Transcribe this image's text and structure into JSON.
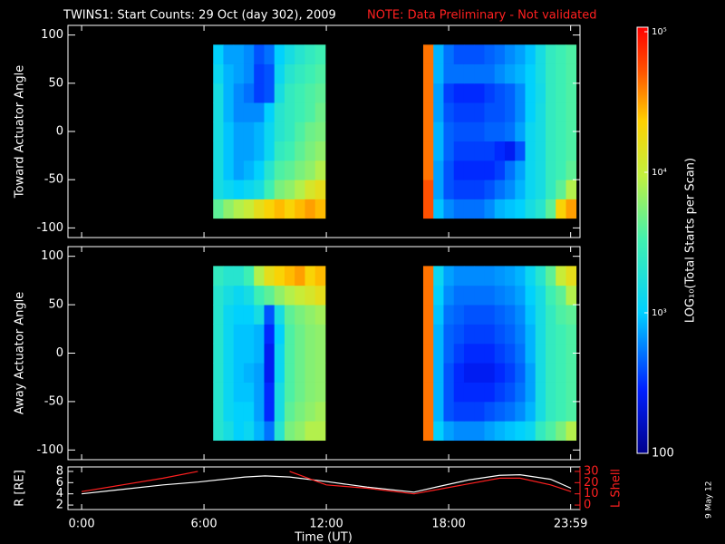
{
  "title": "TWINS1: Start Counts: 29 Oct (day 302), 2009",
  "note": "NOTE: Data Preliminary - Not validated",
  "stamp": "9 May 12",
  "time_axis": {
    "label": "Time (UT)",
    "xlim": [
      -0.67,
      24.44
    ],
    "xticks": [
      {
        "value": 0,
        "label": "0:00"
      },
      {
        "value": 6,
        "label": "6:00"
      },
      {
        "value": 12,
        "label": "12:00"
      },
      {
        "value": 18,
        "label": "18:00"
      },
      {
        "value": 23.98,
        "label": "23:59"
      }
    ]
  },
  "colorbar": {
    "label": "LOG₁₀(Total Starts per Scan)",
    "log": true,
    "lim": [
      100,
      100000
    ],
    "ticks": [
      {
        "value": 100000,
        "label": "10⁵"
      },
      {
        "value": 10000,
        "label": "10⁴"
      },
      {
        "value": 1000,
        "label": "10³"
      },
      100
    ]
  },
  "chart_data": [
    {
      "type": "heatmap",
      "ylabel": "Toward Actuator Angle",
      "ylim": [
        -110,
        110
      ],
      "yticks": [
        -100,
        -50,
        0,
        50,
        100
      ],
      "x": [
        6.7,
        7.2,
        7.7,
        8.2,
        8.7,
        9.2,
        9.7,
        10.2,
        10.7,
        11.2,
        11.7,
        17.0,
        17.5,
        18.0,
        18.5,
        19.0,
        19.5,
        20.0,
        20.5,
        21.0,
        21.5,
        22.0,
        22.5,
        23.0,
        23.5,
        24.0
      ],
      "y": [
        -80,
        -60,
        -40,
        -20,
        0,
        20,
        40,
        60,
        80
      ],
      "values": [
        [
          4000,
          6000,
          8000,
          10000,
          15000,
          20000,
          25000,
          20000,
          25000,
          30000,
          25000,
          50000,
          900,
          600,
          500,
          500,
          500,
          600,
          800,
          900,
          1000,
          1500,
          2000,
          4000,
          20000,
          30000
        ],
        [
          1500,
          1200,
          1000,
          1200,
          1500,
          3000,
          5000,
          6000,
          8000,
          12000,
          15000,
          50000,
          700,
          400,
          350,
          350,
          350,
          400,
          500,
          600,
          800,
          1200,
          1500,
          2500,
          4000,
          8000
        ],
        [
          1500,
          900,
          700,
          800,
          1000,
          2000,
          3500,
          4000,
          5000,
          6000,
          8000,
          40000,
          700,
          400,
          300,
          300,
          300,
          300,
          350,
          500,
          700,
          1200,
          1500,
          2500,
          3000,
          4000
        ],
        [
          1500,
          900,
          700,
          700,
          800,
          1200,
          2500,
          3000,
          4000,
          5000,
          6000,
          40000,
          800,
          450,
          350,
          350,
          350,
          350,
          300,
          250,
          400,
          1200,
          1500,
          2500,
          3000,
          3500
        ],
        [
          1500,
          900,
          700,
          700,
          800,
          1200,
          2000,
          2500,
          3500,
          4500,
          5000,
          40000,
          800,
          450,
          400,
          400,
          400,
          450,
          450,
          500,
          700,
          1200,
          1500,
          2500,
          3000,
          3500
        ],
        [
          1500,
          800,
          600,
          600,
          600,
          1000,
          2000,
          2500,
          3000,
          3500,
          4500,
          40000,
          700,
          400,
          350,
          350,
          350,
          400,
          400,
          450,
          600,
          1000,
          1500,
          2500,
          3000,
          3500
        ],
        [
          1500,
          800,
          600,
          500,
          350,
          400,
          1500,
          2500,
          3000,
          3500,
          4000,
          40000,
          700,
          350,
          300,
          300,
          300,
          350,
          400,
          450,
          600,
          1000,
          1400,
          2500,
          3000,
          3500
        ],
        [
          1200,
          800,
          700,
          600,
          350,
          400,
          1200,
          2000,
          2500,
          3000,
          3500,
          40000,
          800,
          500,
          500,
          500,
          500,
          500,
          600,
          700,
          800,
          1000,
          1500,
          2500,
          3000,
          3500
        ],
        [
          1000,
          700,
          700,
          600,
          400,
          500,
          1000,
          1500,
          2000,
          2500,
          3000,
          40000,
          800,
          500,
          400,
          400,
          400,
          450,
          500,
          600,
          700,
          900,
          1500,
          2500,
          3000,
          3500
        ]
      ]
    },
    {
      "type": "heatmap",
      "ylabel": "Away Actuator Angle",
      "ylim": [
        -110,
        110
      ],
      "yticks": [
        -100,
        -50,
        0,
        50,
        100
      ],
      "x": [
        6.7,
        7.2,
        7.7,
        8.2,
        8.7,
        9.2,
        9.7,
        10.2,
        10.7,
        11.2,
        11.7,
        17.0,
        17.5,
        18.0,
        18.5,
        19.0,
        19.5,
        20.0,
        20.5,
        21.0,
        21.5,
        22.0,
        22.5,
        23.0,
        23.5,
        24.0
      ],
      "y": [
        -80,
        -60,
        -40,
        -20,
        0,
        20,
        40,
        60,
        80
      ],
      "values": [
        [
          2000,
          1500,
          1000,
          1200,
          800,
          500,
          2000,
          5000,
          6000,
          8000,
          8000,
          40000,
          1000,
          700,
          600,
          600,
          600,
          700,
          800,
          900,
          1000,
          1200,
          2500,
          3500,
          5000,
          8000
        ],
        [
          2000,
          1200,
          1000,
          1000,
          700,
          300,
          1500,
          4000,
          5000,
          6000,
          7000,
          40000,
          800,
          400,
          350,
          350,
          350,
          400,
          450,
          500,
          600,
          800,
          1500,
          2500,
          3000,
          3500
        ],
        [
          2000,
          1200,
          900,
          900,
          700,
          300,
          1500,
          3500,
          4500,
          5500,
          6000,
          40000,
          800,
          400,
          300,
          300,
          300,
          300,
          350,
          400,
          500,
          700,
          1500,
          2500,
          3000,
          3500
        ],
        [
          2000,
          1200,
          900,
          800,
          700,
          250,
          1200,
          3500,
          4500,
          5500,
          6000,
          40000,
          800,
          400,
          300,
          250,
          250,
          250,
          300,
          350,
          450,
          700,
          1500,
          2500,
          3000,
          3500
        ],
        [
          2000,
          1200,
          900,
          900,
          800,
          250,
          1200,
          3500,
          4500,
          5500,
          6000,
          40000,
          800,
          450,
          350,
          300,
          300,
          300,
          350,
          400,
          500,
          800,
          1500,
          2500,
          3000,
          3500
        ],
        [
          2000,
          1200,
          900,
          900,
          800,
          300,
          1000,
          3500,
          4500,
          5500,
          6000,
          40000,
          800,
          450,
          400,
          350,
          350,
          350,
          400,
          450,
          550,
          800,
          1500,
          2500,
          3000,
          3500
        ],
        [
          2000,
          1200,
          1000,
          1000,
          1500,
          400,
          1500,
          4000,
          5000,
          6000,
          7000,
          40000,
          900,
          500,
          450,
          400,
          400,
          400,
          450,
          500,
          600,
          900,
          1500,
          2500,
          3500,
          4000
        ],
        [
          2000,
          1500,
          1200,
          1500,
          3000,
          4000,
          6000,
          8000,
          10000,
          12000,
          15000,
          40000,
          1000,
          600,
          500,
          500,
          500,
          500,
          550,
          600,
          700,
          1000,
          1500,
          3000,
          4000,
          8000
        ],
        [
          2500,
          2000,
          2000,
          3000,
          8000,
          15000,
          20000,
          25000,
          30000,
          20000,
          25000,
          40000,
          1200,
          700,
          600,
          600,
          600,
          600,
          650,
          700,
          800,
          1200,
          2000,
          4000,
          10000,
          15000
        ]
      ]
    },
    {
      "type": "line",
      "ylabel": "R [RE]",
      "y2label": "L Shell",
      "ylim": [
        1.2,
        8.8
      ],
      "yticks": [
        2,
        4,
        6,
        8
      ],
      "y2lim": [
        -4,
        34
      ],
      "y2ticks": [
        0,
        10,
        20,
        30
      ],
      "x": [
        0,
        2,
        4,
        5.7,
        8,
        9,
        10.2,
        12,
        14,
        16.3,
        17.5,
        19,
        20.5,
        21.5,
        23,
        24
      ],
      "series": [
        {
          "color": "#ffffff",
          "values": [
            4,
            4.8,
            5.6,
            6.1,
            7.0,
            7.2,
            7.0,
            6.2,
            5.2,
            4.3,
            5.3,
            6.5,
            7.3,
            7.4,
            6.6,
            5.0
          ]
        },
        {
          "color": "#ff2020",
          "axis": "y2",
          "values": [
            12,
            18,
            24,
            30,
            null,
            null,
            30,
            18,
            15,
            10,
            14,
            19,
            24,
            24,
            18,
            12
          ]
        }
      ]
    }
  ]
}
